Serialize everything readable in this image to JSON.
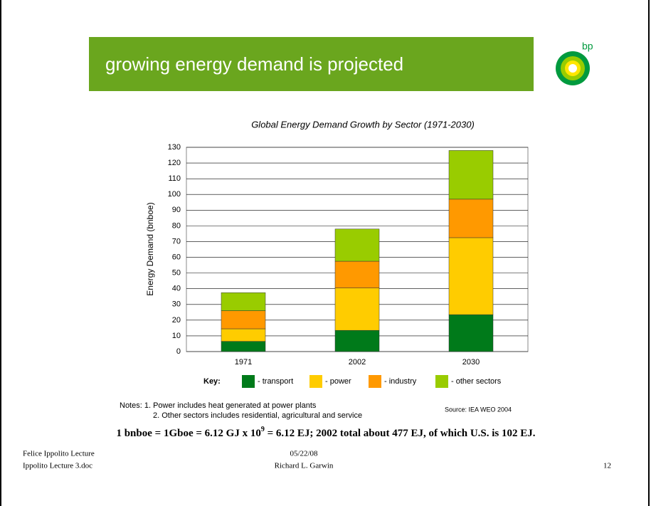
{
  "banner": {
    "title": "growing energy demand is projected",
    "logo": "bp"
  },
  "chart_data": {
    "type": "stacked-bar",
    "title": "Global Energy Demand Growth by Sector (1971-2030)",
    "y_label": "Energy Demand (bnboe)",
    "categories": [
      "1971",
      "2002",
      "2030"
    ],
    "series": [
      {
        "name": "- transport",
        "color": "#007a1a",
        "values": [
          6.5,
          13.5,
          23.5
        ]
      },
      {
        "name": "- power",
        "color": "#ffcc00",
        "values": [
          8,
          27,
          49
        ]
      },
      {
        "name": "- industry",
        "color": "#ff9900",
        "values": [
          11.5,
          17,
          24.5
        ]
      },
      {
        "name": "- other sectors",
        "color": "#99cc00",
        "values": [
          11.5,
          20.5,
          31
        ]
      }
    ],
    "legend_title": "Key:",
    "ylim": [
      0,
      130
    ],
    "yticks": [
      0,
      10,
      20,
      30,
      40,
      50,
      60,
      70,
      80,
      90,
      100,
      110,
      120,
      130
    ],
    "grid": true
  },
  "notes": {
    "line1": "Notes:  1. Power includes heat generated at power plants",
    "line2": "2. Other sectors includes residential, agricultural and service",
    "source": "Source: IEA WEO 2004"
  },
  "formula": {
    "before": "1 bnboe = 1Gboe = 6.12 GJ x 10",
    "exponent": "9",
    "after": " = 6.12 EJ;  2002 total about 477 EJ, of which U.S. is 102 EJ."
  },
  "footer": {
    "left1": "Felice Ippolito Lecture",
    "left2": "Ippolito Lecture 3.doc",
    "center1": "05/22/08",
    "center2": "Richard L. Garwin",
    "page": "12"
  }
}
